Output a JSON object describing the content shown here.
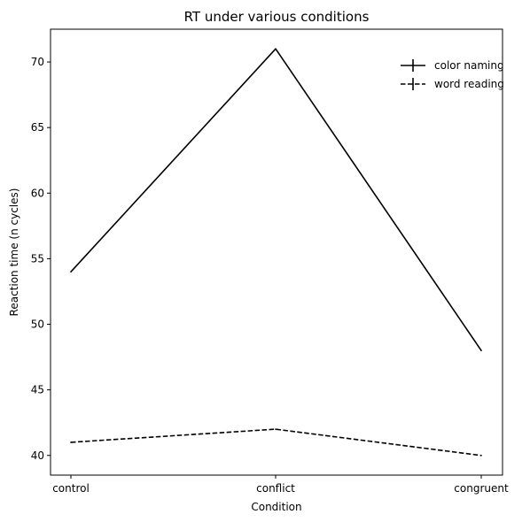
{
  "chart_data": {
    "type": "line",
    "title": "RT under various conditions",
    "xlabel": "Condition",
    "ylabel": "Reaction time (n cycles)",
    "categories": [
      "control",
      "conflict",
      "congruent"
    ],
    "ylim": [
      38.5,
      72.5
    ],
    "yticks": [
      40,
      45,
      50,
      55,
      60,
      65,
      70
    ],
    "grid": false,
    "legend_position": "top-right",
    "series": [
      {
        "name": "color naming",
        "values": [
          54,
          71,
          48
        ],
        "style": "solid",
        "color": "#000000"
      },
      {
        "name": "word reading",
        "values": [
          41,
          42,
          40
        ],
        "style": "dashed",
        "color": "#000000"
      }
    ]
  }
}
